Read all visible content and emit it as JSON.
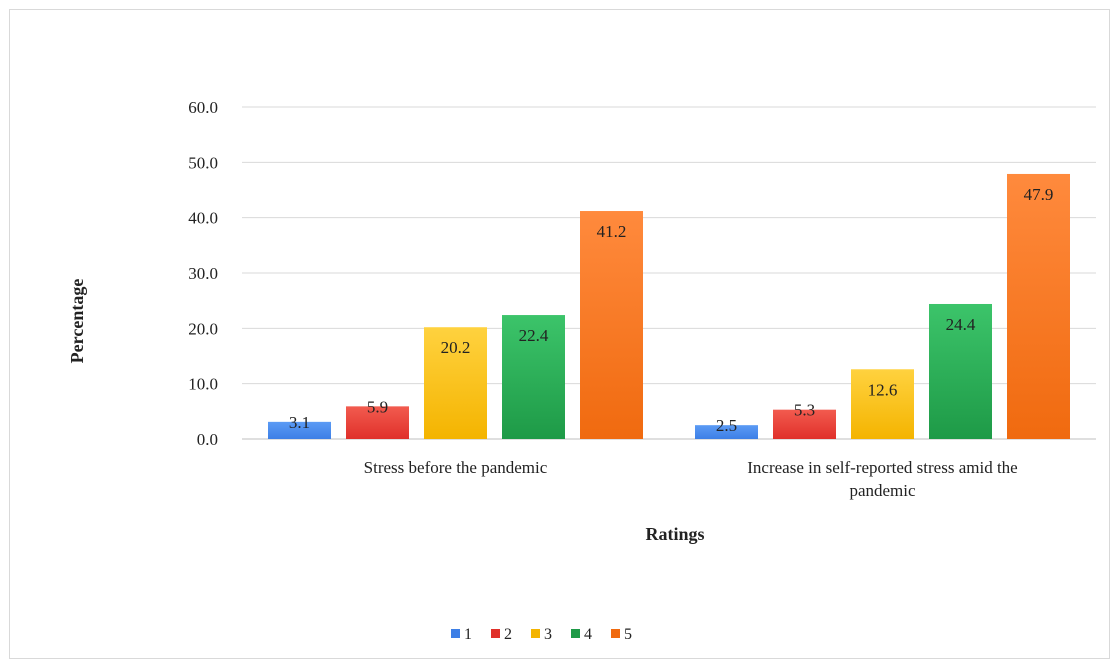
{
  "chart_data": {
    "type": "bar",
    "title": "",
    "xlabel": "Ratings",
    "ylabel": "Percentage",
    "ylim": [
      0,
      60
    ],
    "yticks": [
      "0.0",
      "10.0",
      "20.0",
      "30.0",
      "40.0",
      "50.0",
      "60.0"
    ],
    "categories": [
      [
        "Stress before the pandemic"
      ],
      [
        "Increase in self-reported  stress amid the",
        "pandemic"
      ]
    ],
    "series": [
      {
        "name": "1",
        "values": [
          3.1,
          2.5
        ],
        "labels": [
          "3.1",
          "2.5"
        ],
        "color": "#3d7fe6",
        "color_top": "#5b9bf5"
      },
      {
        "name": "2",
        "values": [
          5.9,
          5.3
        ],
        "labels": [
          "5.9",
          "5.3"
        ],
        "color": "#e0302a",
        "color_top": "#f25b4f"
      },
      {
        "name": "3",
        "values": [
          20.2,
          12.6
        ],
        "labels": [
          "20.2",
          "12.6"
        ],
        "color": "#f4b400",
        "color_top": "#ffd23f"
      },
      {
        "name": "4",
        "values": [
          22.4,
          24.4
        ],
        "labels": [
          "22.4",
          "24.4"
        ],
        "color": "#1e9a47",
        "color_top": "#3cc46a"
      },
      {
        "name": "5",
        "values": [
          41.2,
          47.9
        ],
        "labels": [
          "41.2",
          "47.9"
        ],
        "color": "#f06a0f",
        "color_top": "#ff8a3d"
      }
    ],
    "grid": true,
    "legend": "bottom-center"
  }
}
